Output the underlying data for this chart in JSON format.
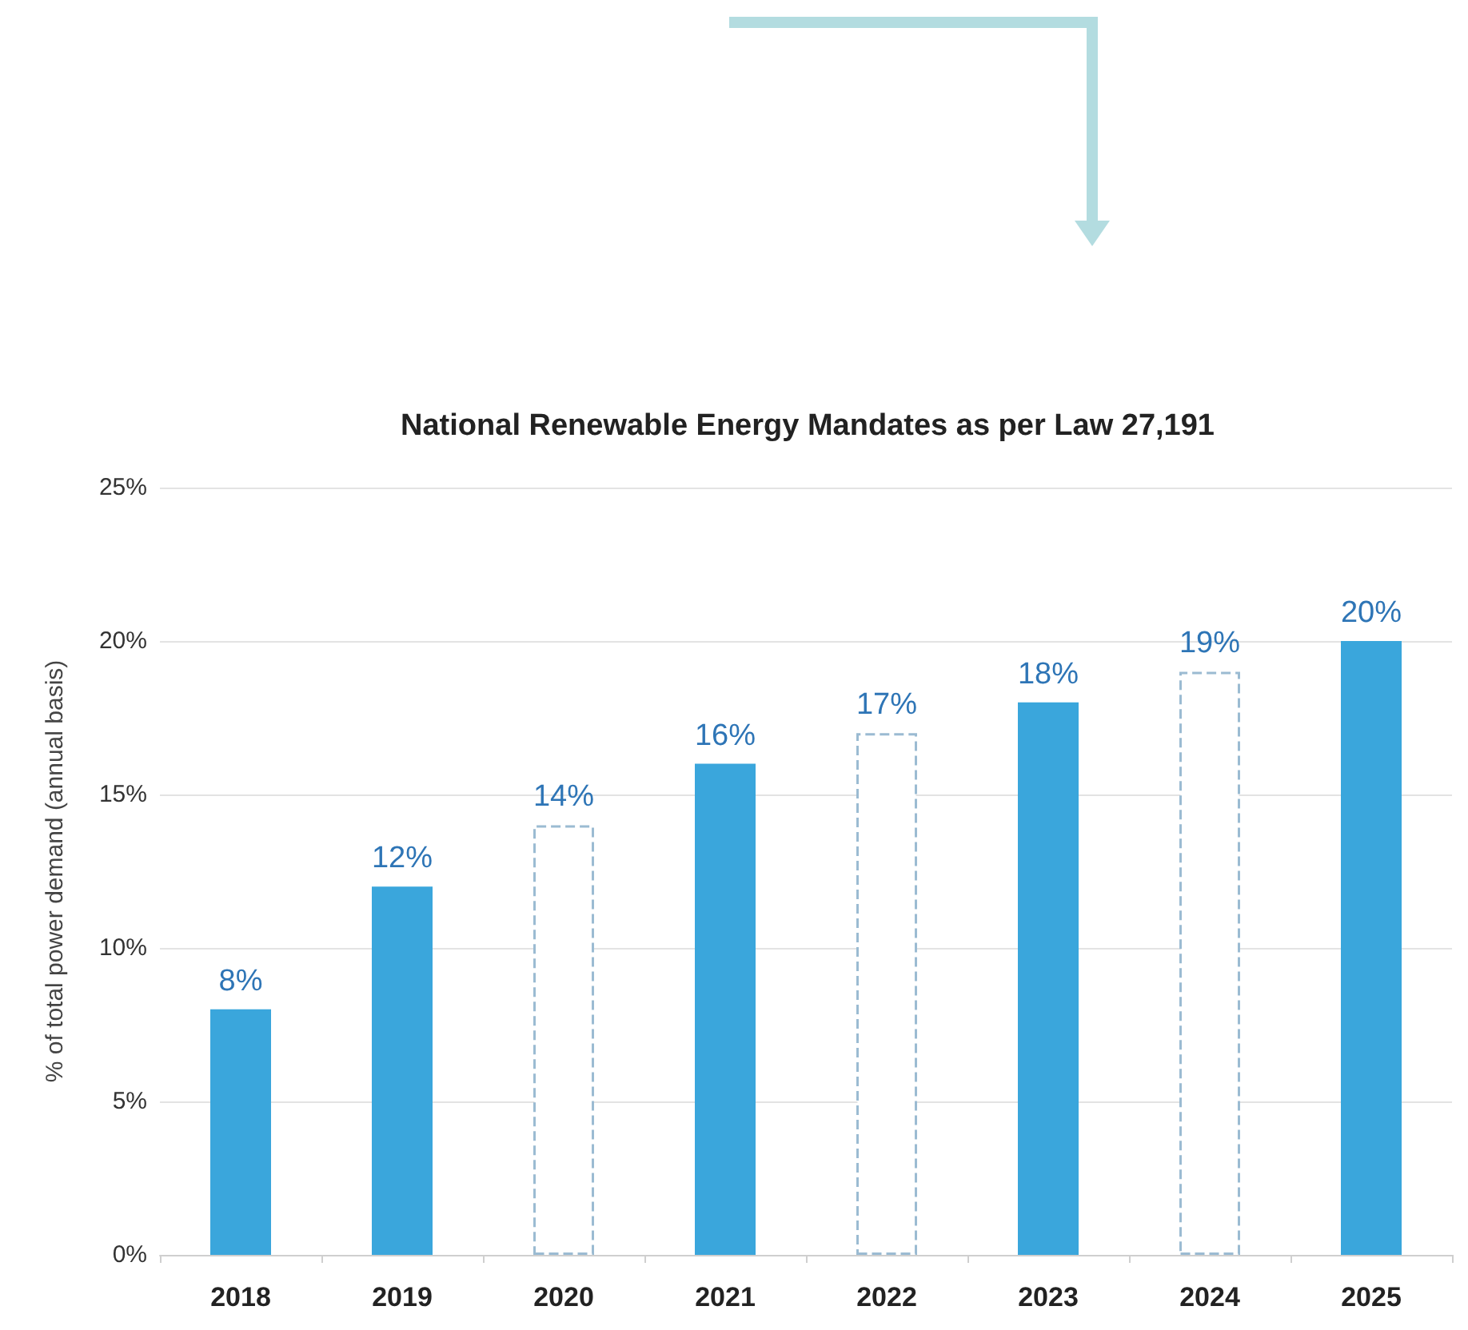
{
  "chart_data": {
    "type": "bar",
    "title": "National Renewable Energy Mandates as per Law 27,191",
    "ylabel": "% of total power demand (annual basis)",
    "categories": [
      "2018",
      "2019",
      "2020",
      "2021",
      "2022",
      "2023",
      "2024",
      "2025"
    ],
    "series": [
      {
        "color": "#3aa6dc",
        "line_style": "solid",
        "values": [
          8,
          12,
          null,
          16,
          null,
          18,
          null,
          20
        ],
        "value_labels": [
          "8%",
          "12%",
          null,
          "16%",
          null,
          "18%",
          null,
          "20%"
        ]
      },
      {
        "color": "#9bbbd2",
        "line_style": "dashed",
        "values": [
          null,
          null,
          14,
          null,
          17,
          null,
          19,
          null
        ],
        "value_labels": [
          null,
          null,
          "14%",
          null,
          "17%",
          null,
          "19%",
          null
        ]
      }
    ],
    "ylim": [
      0,
      25
    ],
    "yticks": [
      {
        "value": 0,
        "label": "0%"
      },
      {
        "value": 5,
        "label": "5%"
      },
      {
        "value": 10,
        "label": "10%"
      },
      {
        "value": 15,
        "label": "15%"
      },
      {
        "value": 20,
        "label": "20%"
      },
      {
        "value": 25,
        "label": "25%"
      }
    ],
    "grid": "y"
  }
}
